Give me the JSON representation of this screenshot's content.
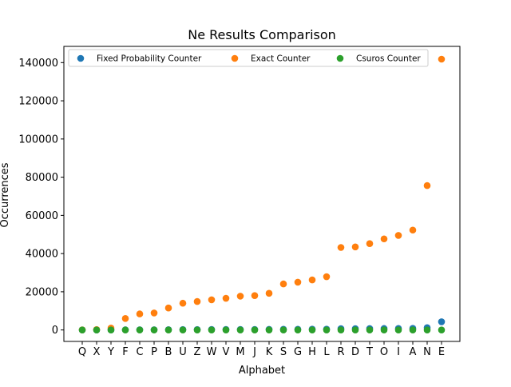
{
  "chart_data": {
    "type": "scatter",
    "title": "Ne Results Comparison",
    "xlabel": "Alphabet",
    "ylabel": "Occurrences",
    "categories": [
      "Q",
      "X",
      "Y",
      "F",
      "C",
      "P",
      "B",
      "U",
      "Z",
      "W",
      "V",
      "M",
      "J",
      "K",
      "S",
      "G",
      "H",
      "L",
      "R",
      "D",
      "T",
      "O",
      "I",
      "A",
      "N",
      "E"
    ],
    "ylim": [
      -6000,
      148500
    ],
    "yticks": [
      0,
      20000,
      40000,
      60000,
      80000,
      100000,
      120000,
      140000
    ],
    "ytick_labels": [
      "0",
      "20000",
      "40000",
      "60000",
      "80000",
      "100000",
      "120000",
      "140000"
    ],
    "grid": false,
    "legend_placement": "top",
    "series": [
      {
        "name": "Fixed Probability Counter",
        "color": "#1f77b4",
        "values": [
          0,
          0,
          20,
          80,
          100,
          110,
          160,
          220,
          230,
          240,
          250,
          270,
          280,
          290,
          380,
          390,
          420,
          440,
          680,
          690,
          720,
          760,
          790,
          820,
          1180,
          4270
        ]
      },
      {
        "name": "Exact Counter",
        "color": "#ff7f0e",
        "values": [
          50,
          200,
          1000,
          6000,
          8400,
          8900,
          11500,
          14000,
          14900,
          15800,
          16600,
          17700,
          18000,
          19200,
          24100,
          25000,
          26200,
          27900,
          43200,
          43500,
          45200,
          47700,
          49500,
          52300,
          75600,
          141800
        ]
      },
      {
        "name": "Csuros Counter",
        "color": "#2ca02c",
        "values": [
          0,
          0,
          0,
          0,
          0,
          0,
          0,
          0,
          0,
          0,
          0,
          0,
          0,
          0,
          0,
          0,
          0,
          0,
          0,
          0,
          0,
          0,
          0,
          0,
          0,
          0
        ]
      }
    ]
  }
}
